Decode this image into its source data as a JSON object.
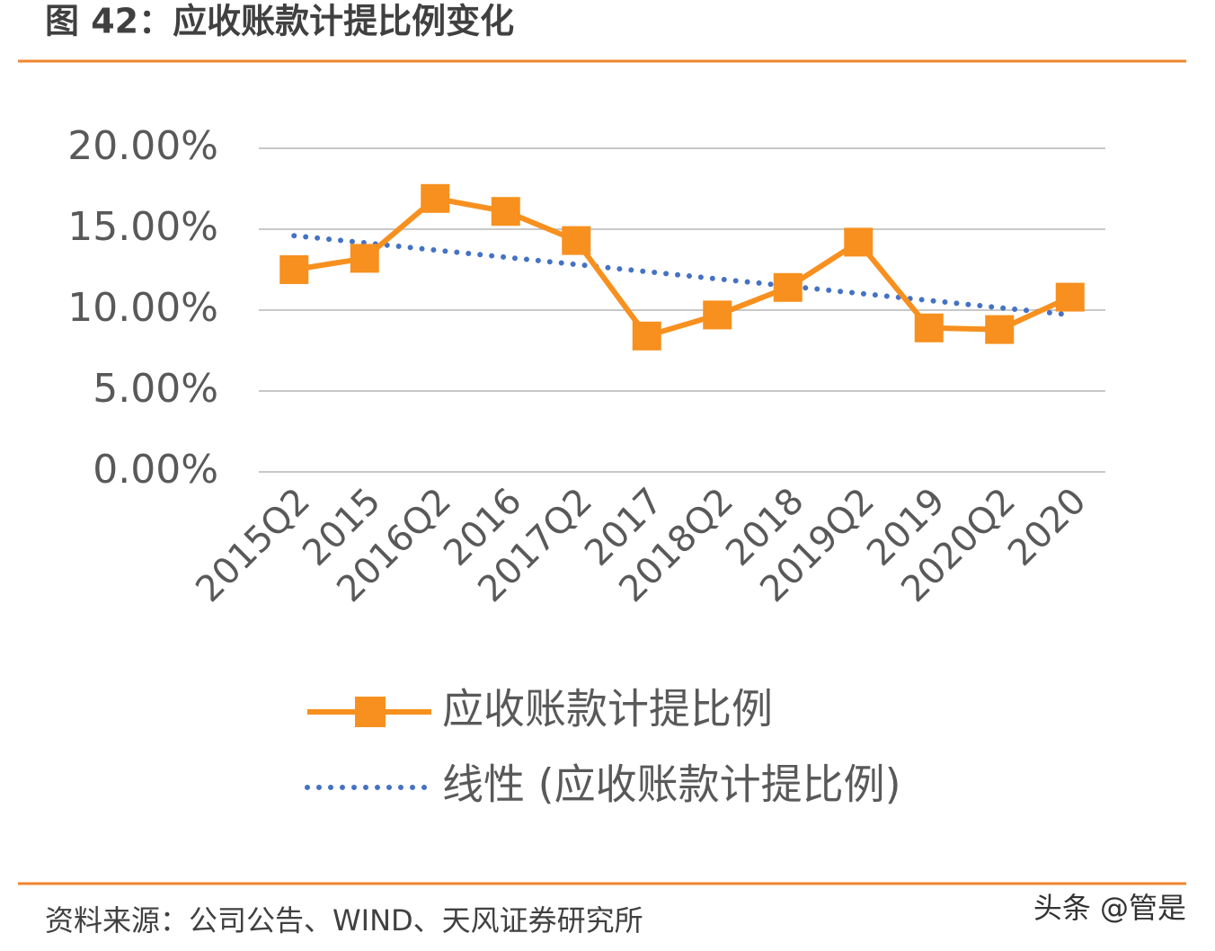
{
  "chart_data": {
    "type": "line",
    "title": "图 42：应收账款计提比例变化",
    "categories": [
      "2015Q2",
      "2015",
      "2016Q2",
      "2016",
      "2017Q2",
      "2017",
      "2018Q2",
      "2018",
      "2019Q2",
      "2019",
      "2020Q2",
      "2020"
    ],
    "series": [
      {
        "name": "应收账款计提比例",
        "color": "#f7901e",
        "line_style": "solid",
        "marker": "square",
        "values": [
          12.5,
          13.2,
          16.9,
          16.1,
          14.3,
          8.4,
          9.7,
          11.4,
          14.2,
          8.9,
          8.8,
          10.8
        ]
      },
      {
        "name": "线性 (应收账款计提比例)",
        "color": "#4472c4",
        "line_style": "dotted",
        "marker": "none",
        "values": [
          14.6,
          14.16,
          13.71,
          13.27,
          12.82,
          12.38,
          11.93,
          11.49,
          11.04,
          10.6,
          10.15,
          9.71
        ]
      }
    ],
    "ylim": [
      0,
      20
    ],
    "yticks": [
      {
        "value": 0,
        "label": "0.00%"
      },
      {
        "value": 5,
        "label": "5.00%"
      },
      {
        "value": 10,
        "label": "10.00%"
      },
      {
        "value": 15,
        "label": "15.00%"
      },
      {
        "value": 20,
        "label": "20.00%"
      }
    ],
    "grid": true,
    "legend": "bottom",
    "source": "资料来源：公司公告、WIND、天风证券研究所",
    "watermark": "头条 @管是"
  }
}
